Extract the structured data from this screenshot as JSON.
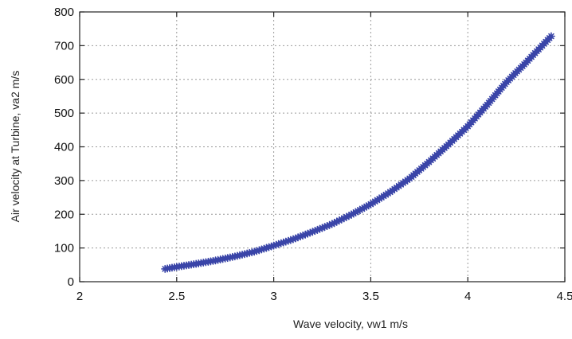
{
  "chart_data": {
    "type": "line",
    "xlabel": "Wave velocity, vw1  m/s",
    "ylabel": "Air velocity at Turbine,  va2 m/s",
    "xlim": [
      2,
      4.5
    ],
    "ylim": [
      0,
      800
    ],
    "xticks": [
      "2",
      "2.5",
      "3",
      "3.5",
      "4",
      "4.5"
    ],
    "yticks": [
      "0",
      "100",
      "200",
      "300",
      "400",
      "500",
      "600",
      "700",
      "800"
    ],
    "grid": true,
    "marker": "asterisk",
    "series": [
      {
        "color": "#3a45a8",
        "x": [
          2.44,
          2.5,
          2.6,
          2.7,
          2.8,
          2.9,
          3.0,
          3.1,
          3.2,
          3.3,
          3.4,
          3.5,
          3.6,
          3.7,
          3.8,
          3.9,
          4.0,
          4.1,
          4.2,
          4.3,
          4.43
        ],
        "y": [
          38,
          44,
          53,
          63,
          75,
          89,
          107,
          126,
          148,
          171,
          199,
          230,
          266,
          306,
          355,
          407,
          461,
          525,
          592,
          650,
          728
        ]
      }
    ]
  }
}
